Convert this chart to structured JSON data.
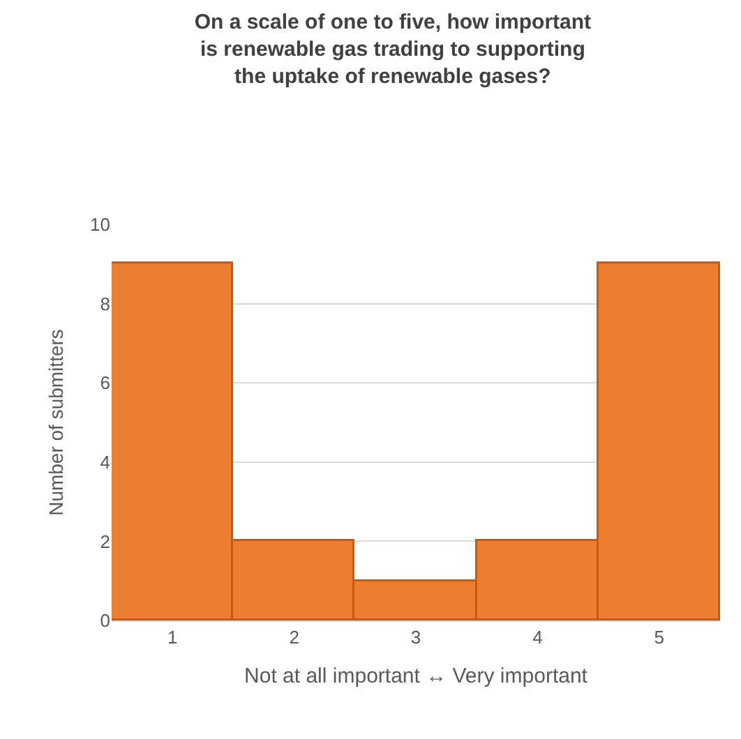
{
  "chart_data": {
    "type": "bar",
    "title": "On a scale of one to five, how important\nis renewable gas trading to supporting\nthe uptake of renewable gases?",
    "categories": [
      "1",
      "2",
      "3",
      "4",
      "5"
    ],
    "values": [
      9,
      2,
      1,
      2,
      9
    ],
    "color": "#ed7d31",
    "xlabel": "Not at all important ↔ Very important",
    "ylabel": "Number of submitters",
    "ylim": [
      0,
      10
    ],
    "yticks": [
      0,
      2,
      4,
      6,
      8,
      10
    ],
    "grid": "y",
    "legend": false
  }
}
